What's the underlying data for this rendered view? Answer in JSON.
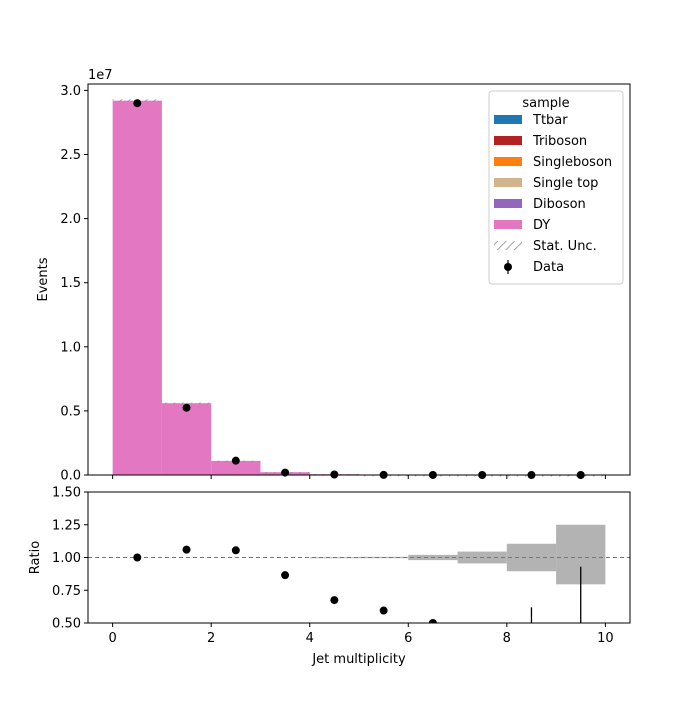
{
  "chart_data": [
    {
      "type": "bar",
      "panel": "main",
      "xlabel": "",
      "ylabel": "Events",
      "scale_label": "1e7",
      "xlim": [
        -0.5,
        10.5
      ],
      "ylim": [
        0,
        30500000.0
      ],
      "x_ticks": [
        "0",
        "2",
        "4",
        "6",
        "8",
        "10"
      ],
      "y_ticks": [
        "0.0",
        "0.5",
        "1.0",
        "1.5",
        "2.0",
        "2.5",
        "3.0"
      ],
      "bin_edges": [
        0,
        1,
        2,
        3,
        4,
        5,
        6,
        7,
        8,
        9,
        10
      ],
      "series": [
        {
          "name": "Ttbar",
          "color": "#1f77b4",
          "values": [
            0,
            0,
            0,
            0,
            0,
            0,
            0,
            0,
            0,
            0
          ]
        },
        {
          "name": "Triboson",
          "color": "#b22222",
          "values": [
            0,
            0,
            0,
            0,
            0,
            0,
            0,
            0,
            0,
            0
          ]
        },
        {
          "name": "Singleboson",
          "color": "#ff7f0e",
          "values": [
            0,
            0,
            0,
            0,
            0,
            0,
            0,
            0,
            0,
            0
          ]
        },
        {
          "name": "Single top",
          "color": "#d2b48c",
          "values": [
            0,
            0,
            0,
            0,
            0,
            0,
            0,
            0,
            0,
            0
          ]
        },
        {
          "name": "Diboson",
          "color": "#9467bd",
          "values": [
            0,
            0,
            0,
            0,
            0,
            0,
            0,
            0,
            0,
            0
          ]
        },
        {
          "name": "DY",
          "color": "#e377c2",
          "values": [
            29200000,
            5600000,
            1100000,
            220000,
            60000,
            15000,
            3000,
            600,
            100,
            20
          ]
        }
      ],
      "stat_unc_label": "Stat. Unc.",
      "data": {
        "name": "Data",
        "x": [
          0.5,
          1.5,
          2.5,
          3.5,
          4.5,
          5.5,
          6.5,
          7.5,
          8.5,
          9.5
        ],
        "y": [
          29000000,
          5250000,
          1120000,
          190000,
          40000,
          9000,
          1500,
          300,
          60,
          10
        ]
      },
      "legend": {
        "title": "sample",
        "position": "top-right"
      }
    },
    {
      "type": "scatter",
      "panel": "ratio",
      "xlabel": "Jet multiplicity",
      "ylabel": "Ratio",
      "xlim": [
        -0.5,
        10.5
      ],
      "ylim": [
        0.5,
        1.5
      ],
      "x_ticks": [
        "0",
        "2",
        "4",
        "6",
        "8",
        "10"
      ],
      "y_ticks": [
        "0.50",
        "0.75",
        "1.00",
        "1.25",
        "1.50"
      ],
      "reference_line": 1.0,
      "ratio": {
        "x": [
          0.5,
          1.5,
          2.5,
          3.5,
          4.5,
          5.5,
          6.5
        ],
        "y": [
          1.0,
          1.06,
          1.055,
          0.865,
          0.675,
          0.595,
          0.5
        ]
      },
      "ratio_error_bars": [
        {
          "x": 8.5,
          "low": 0.5,
          "high": 0.62
        },
        {
          "x": 9.5,
          "low": 0.5,
          "high": 0.93
        }
      ],
      "uncertainty_band": [
        {
          "lo": 4,
          "hi": 5,
          "low": 0.998,
          "high": 1.002
        },
        {
          "lo": 5,
          "hi": 6,
          "low": 0.995,
          "high": 1.005
        },
        {
          "lo": 6,
          "hi": 7,
          "low": 0.98,
          "high": 1.02
        },
        {
          "lo": 7,
          "hi": 8,
          "low": 0.955,
          "high": 1.045
        },
        {
          "lo": 8,
          "hi": 9,
          "low": 0.895,
          "high": 1.105
        },
        {
          "lo": 9,
          "hi": 10,
          "low": 0.795,
          "high": 1.25
        }
      ]
    }
  ]
}
